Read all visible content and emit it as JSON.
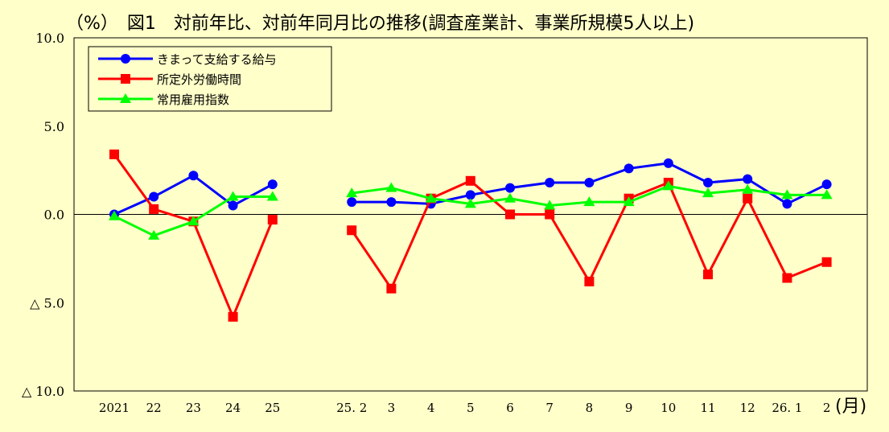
{
  "chart_data": {
    "type": "line",
    "title": "（%）　図1　対前年比、対前年同月比の推移(調査産業計、事業所規模5人以上)",
    "xlabel": "(月)",
    "ylabel": "",
    "ylim": [
      -10,
      10
    ],
    "yticks": [
      {
        "value": 10,
        "label": "10.0"
      },
      {
        "value": 5,
        "label": "5.0"
      },
      {
        "value": 0,
        "label": "0.0"
      },
      {
        "value": -5,
        "label": "△ 5.0"
      },
      {
        "value": -10,
        "label": "△ 10.0"
      }
    ],
    "categories": [
      "2021",
      "22",
      "23",
      "24",
      "25",
      "",
      "25. 2",
      "3",
      "4",
      "5",
      "6",
      "7",
      "8",
      "9",
      "10",
      "11",
      "12",
      "26. 1",
      "2"
    ],
    "legend_position": "top-left",
    "grid": false,
    "series": [
      {
        "name": "きまって支給する給与",
        "color": "#0000FF",
        "marker": "circle",
        "values": [
          0.0,
          1.0,
          2.2,
          0.5,
          1.7,
          null,
          0.7,
          0.7,
          0.6,
          1.1,
          1.5,
          1.8,
          1.8,
          2.6,
          2.9,
          1.8,
          2.0,
          0.6,
          1.7
        ]
      },
      {
        "name": "所定外労働時間",
        "color": "#FF0000",
        "marker": "square",
        "values": [
          3.4,
          0.3,
          -0.4,
          -5.8,
          -0.3,
          null,
          -0.9,
          -4.2,
          0.9,
          1.9,
          0.0,
          0.0,
          -3.8,
          0.9,
          1.8,
          -3.4,
          0.9,
          -3.6,
          -2.7
        ]
      },
      {
        "name": "常用雇用指数",
        "color": "#00FF00",
        "marker": "triangle",
        "values": [
          -0.1,
          -1.2,
          -0.4,
          1.0,
          1.0,
          null,
          1.2,
          1.5,
          0.9,
          0.6,
          0.9,
          0.5,
          0.7,
          0.7,
          1.6,
          1.2,
          1.4,
          1.1,
          1.1
        ]
      }
    ]
  }
}
